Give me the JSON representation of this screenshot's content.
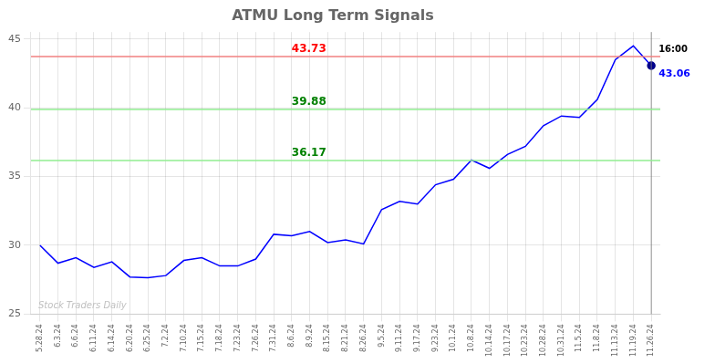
{
  "chart_data": {
    "type": "line",
    "title": "ATMU Long Term Signals",
    "categories": [
      "5.28.24",
      "6.3.24",
      "6.6.24",
      "6.11.24",
      "6.14.24",
      "6.20.24",
      "6.25.24",
      "7.2.24",
      "7.10.24",
      "7.15.24",
      "7.18.24",
      "7.23.24",
      "7.26.24",
      "7.31.24",
      "8.6.24",
      "8.9.24",
      "8.15.24",
      "8.21.24",
      "8.26.24",
      "9.5.24",
      "9.11.24",
      "9.17.24",
      "9.23.24",
      "10.1.24",
      "10.8.24",
      "10.14.24",
      "10.17.24",
      "10.23.24",
      "10.28.24",
      "10.31.24",
      "11.5.24",
      "11.8.24",
      "11.13.24",
      "11.19.24",
      "11.26.24"
    ],
    "values": [
      30.0,
      28.7,
      29.1,
      28.4,
      28.8,
      27.7,
      27.65,
      27.8,
      28.9,
      29.1,
      28.5,
      28.5,
      29.0,
      30.8,
      30.7,
      31.0,
      30.2,
      30.4,
      30.1,
      32.6,
      33.2,
      33.0,
      34.4,
      34.8,
      36.2,
      35.6,
      36.6,
      37.2,
      38.7,
      39.4,
      39.3,
      40.6,
      43.5,
      44.5,
      43.06
    ],
    "color": "blue",
    "ylim": [
      25,
      45.5
    ],
    "yticks": [
      25,
      30,
      35,
      40,
      45
    ],
    "grid": true,
    "annotations": [
      {
        "type": "hline",
        "y": 43.73,
        "text": "43.73",
        "color": "#f08080",
        "text_color": "red"
      },
      {
        "type": "hline",
        "y": 39.88,
        "text": "39.88",
        "color": "#90ee90",
        "text_color": "green"
      },
      {
        "type": "hline",
        "y": 36.17,
        "text": "36.17",
        "color": "#90ee90",
        "text_color": "green"
      },
      {
        "type": "point",
        "y": 43.06,
        "text": "43.06",
        "color": "blue",
        "marker_color": "darkblue"
      },
      {
        "type": "text",
        "text": "16:00",
        "color": "black"
      },
      {
        "type": "text",
        "text": "Stock Traders Daily",
        "color": "#c0c0c0"
      }
    ]
  }
}
